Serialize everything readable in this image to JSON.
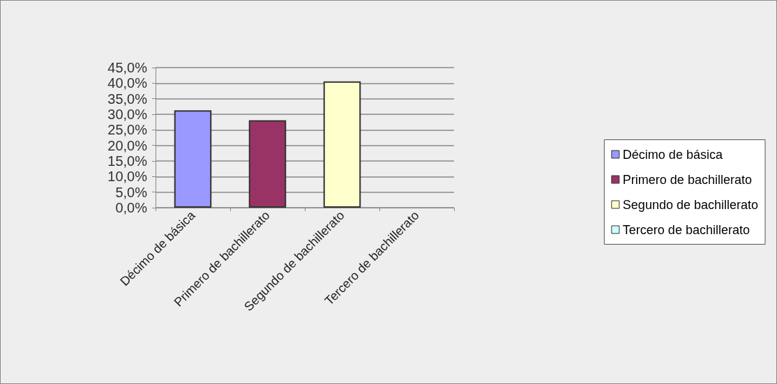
{
  "chart_data": {
    "type": "bar",
    "categories": [
      "Décimo de básica",
      "Primero de bachillerato",
      "Segundo de bachillerato",
      "Tercero de bachillerato"
    ],
    "series": [
      {
        "name": "Décimo de básica",
        "color": "#9999ff",
        "values": [
          31.3,
          null,
          null,
          null
        ]
      },
      {
        "name": "Primero de bachillerato",
        "color": "#993366",
        "values": [
          null,
          28.1,
          null,
          null
        ]
      },
      {
        "name": "Segundo de bachillerato",
        "color": "#ffffcc",
        "values": [
          null,
          null,
          40.6,
          null
        ]
      },
      {
        "name": "Tercero de bachillerato",
        "color": "#ccffff",
        "values": [
          null,
          null,
          null,
          0
        ]
      }
    ],
    "ylim": [
      0,
      45
    ],
    "yticks": [
      {
        "value": 0,
        "label": "0,0%"
      },
      {
        "value": 5,
        "label": "5,0%"
      },
      {
        "value": 10,
        "label": "10,0%"
      },
      {
        "value": 15,
        "label": "15,0%"
      },
      {
        "value": 20,
        "label": "20,0%"
      },
      {
        "value": 25,
        "label": "25,0%"
      },
      {
        "value": 30,
        "label": "30,0%"
      },
      {
        "value": 35,
        "label": "35,0%"
      },
      {
        "value": 40,
        "label": "40,0%"
      },
      {
        "value": 45,
        "label": "45,0%"
      }
    ],
    "grid": "y",
    "legend": "right"
  }
}
